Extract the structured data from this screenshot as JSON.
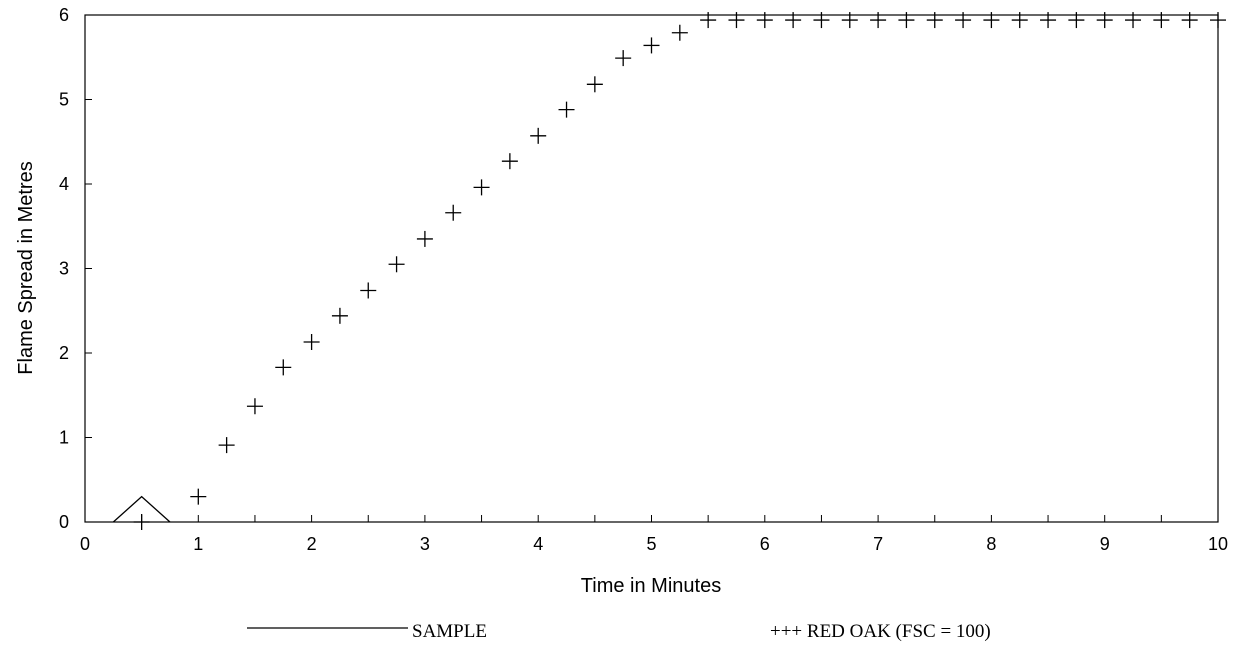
{
  "chart_data": {
    "type": "line",
    "xlabel": "Time in Minutes",
    "ylabel": "Flame Spread in Metres",
    "xlim": [
      0,
      10
    ],
    "ylim": [
      0,
      6
    ],
    "xticks": [
      "0",
      "1",
      "2",
      "3",
      "4",
      "5",
      "6",
      "7",
      "8",
      "9",
      "10"
    ],
    "yticks": [
      "0",
      "1",
      "2",
      "3",
      "4",
      "5",
      "6"
    ],
    "grid": false,
    "legend_position": "bottom",
    "series": [
      {
        "name": "SAMPLE",
        "style": "solid-line",
        "x": [
          0.25,
          0.5,
          0.75
        ],
        "y": [
          0.0,
          0.3,
          0.0
        ]
      },
      {
        "name": "RED OAK (FSC = 100)",
        "style": "plus-markers",
        "x": [
          0.5,
          1.0,
          1.25,
          1.5,
          1.75,
          2.0,
          2.25,
          2.5,
          2.75,
          3.0,
          3.25,
          3.5,
          3.75,
          4.0,
          4.25,
          4.5,
          4.75,
          5.0,
          5.25,
          5.5,
          5.75,
          6.0,
          6.25,
          6.5,
          6.75,
          7.0,
          7.25,
          7.5,
          7.75,
          8.0,
          8.25,
          8.5,
          8.75,
          9.0,
          9.25,
          9.5,
          9.75,
          10.0
        ],
        "y": [
          0.0,
          0.3,
          0.91,
          1.37,
          1.83,
          2.13,
          2.44,
          2.74,
          3.05,
          3.35,
          3.66,
          3.96,
          4.27,
          4.57,
          4.88,
          5.18,
          5.49,
          5.64,
          5.79,
          5.94,
          5.94,
          5.94,
          5.94,
          5.94,
          5.94,
          5.94,
          5.94,
          5.94,
          5.94,
          5.94,
          5.94,
          5.94,
          5.94,
          5.94,
          5.94,
          5.94,
          5.94,
          5.94
        ]
      }
    ],
    "legend": {
      "sample_label": "SAMPLE",
      "redoak_label": "+++ RED OAK (FSC = 100)"
    }
  }
}
